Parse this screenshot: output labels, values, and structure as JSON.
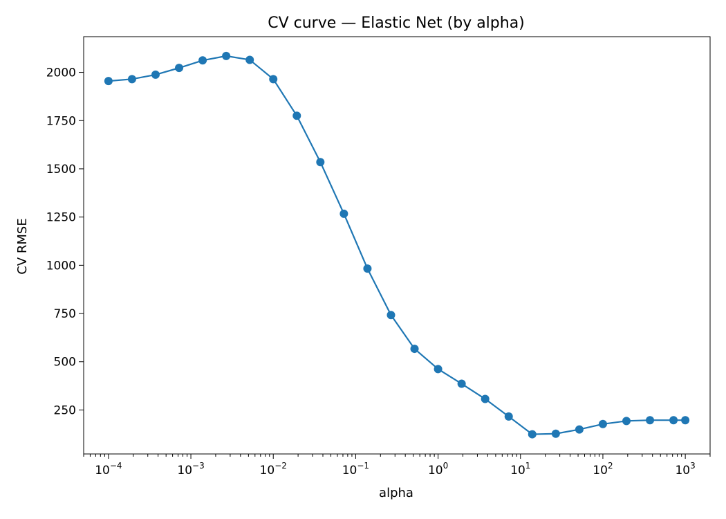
{
  "chart_data": {
    "type": "line",
    "title": "CV curve — Elastic Net (by alpha)",
    "xlabel": "alpha",
    "ylabel": "CV RMSE",
    "xscale": "log",
    "xlim": [
      5e-05,
      2000
    ],
    "ylim": [
      22,
      2185
    ],
    "grid": false,
    "legend": "none",
    "marker": "circle",
    "x_ticks": [
      {
        "value": 0.0001,
        "base": "10",
        "exp": "−4"
      },
      {
        "value": 0.001,
        "base": "10",
        "exp": "−3"
      },
      {
        "value": 0.01,
        "base": "10",
        "exp": "−2"
      },
      {
        "value": 0.1,
        "base": "10",
        "exp": "−1"
      },
      {
        "value": 1,
        "base": "10",
        "exp": "0"
      },
      {
        "value": 10,
        "base": "10",
        "exp": "1"
      },
      {
        "value": 100,
        "base": "10",
        "exp": "2"
      },
      {
        "value": 1000,
        "base": "10",
        "exp": "3"
      }
    ],
    "y_ticks": [
      {
        "value": 250,
        "label": "250"
      },
      {
        "value": 500,
        "label": "500"
      },
      {
        "value": 750,
        "label": "750"
      },
      {
        "value": 1000,
        "label": "1000"
      },
      {
        "value": 1250,
        "label": "1250"
      },
      {
        "value": 1500,
        "label": "1500"
      },
      {
        "value": 1750,
        "label": "1750"
      },
      {
        "value": 2000,
        "label": "2000"
      }
    ],
    "series": [
      {
        "color": "#1f77b4",
        "x": [
          0.0001,
          0.00019307,
          0.00037276,
          0.00071969,
          0.0013895,
          0.0026827,
          0.0051795,
          0.01,
          0.019307,
          0.037276,
          0.071969,
          0.13895,
          0.26827,
          0.51795,
          1,
          1.9307,
          3.7276,
          7.1969,
          13.895,
          26.827,
          51.795,
          100,
          193.07,
          372.76,
          719.69,
          1000
        ],
        "values": [
          1955,
          1965,
          1988,
          2023,
          2062,
          2085,
          2065,
          1965,
          1775,
          1535,
          1267,
          983,
          742,
          567,
          462,
          386,
          307,
          216,
          124,
          127,
          149,
          177,
          193,
          197,
          197,
          197
        ]
      }
    ]
  }
}
